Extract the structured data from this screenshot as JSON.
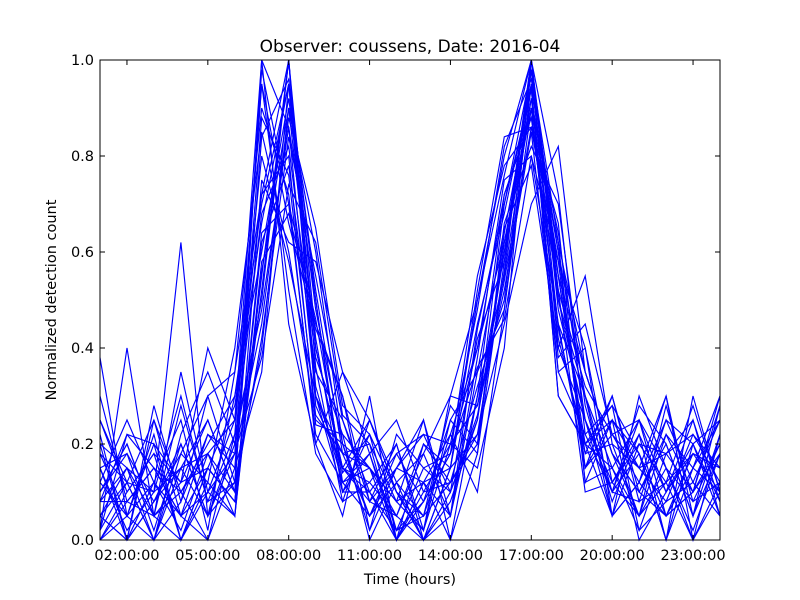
{
  "chart_data": {
    "type": "line",
    "title": "Observer: coussens, Date: 2016-04",
    "xlabel": "Time (hours)",
    "ylabel": "Normalized detection count",
    "xlim": [
      1,
      24
    ],
    "ylim": [
      0,
      1
    ],
    "x_ticks": [
      {
        "value": 2,
        "label": "02:00:00"
      },
      {
        "value": 5,
        "label": "05:00:00"
      },
      {
        "value": 8,
        "label": "08:00:00"
      },
      {
        "value": 11,
        "label": "11:00:00"
      },
      {
        "value": 14,
        "label": "14:00:00"
      },
      {
        "value": 17,
        "label": "17:00:00"
      },
      {
        "value": 20,
        "label": "20:00:00"
      },
      {
        "value": 23,
        "label": "23:00:00"
      }
    ],
    "y_ticks": [
      {
        "value": 0.0,
        "label": "0.0"
      },
      {
        "value": 0.2,
        "label": "0.2"
      },
      {
        "value": 0.4,
        "label": "0.4"
      },
      {
        "value": 0.6,
        "label": "0.6"
      },
      {
        "value": 0.8,
        "label": "0.8"
      },
      {
        "value": 1.0,
        "label": "1.0"
      }
    ],
    "grid": false,
    "legend": "none",
    "color": "#0000ff",
    "x": [
      1,
      2,
      3,
      4,
      5,
      6,
      7,
      8,
      9,
      10,
      11,
      12,
      13,
      14,
      15,
      16,
      17,
      18,
      19,
      20,
      21,
      22,
      23,
      24
    ],
    "series": [
      {
        "values": [
          0.38,
          0.05,
          0.12,
          0.02,
          0.18,
          0.1,
          1.0,
          0.45,
          0.2,
          0.35,
          0.18,
          0.0,
          0.12,
          0.22,
          0.1,
          0.48,
          0.95,
          0.3,
          0.2,
          0.15,
          0.05,
          0.22,
          0.1,
          0.18
        ]
      },
      {
        "values": [
          0.15,
          0.0,
          0.08,
          0.2,
          0.05,
          0.3,
          0.7,
          0.95,
          0.4,
          0.15,
          0.08,
          0.05,
          0.0,
          0.1,
          0.25,
          0.6,
          1.0,
          0.55,
          0.2,
          0.05,
          0.12,
          0.3,
          0.0,
          0.1
        ]
      },
      {
        "values": [
          0.05,
          0.12,
          0.0,
          0.15,
          0.25,
          0.1,
          0.55,
          1.0,
          0.3,
          0.1,
          0.22,
          0.02,
          0.08,
          0.18,
          0.4,
          0.72,
          0.88,
          0.45,
          0.15,
          0.25,
          0.0,
          0.1,
          0.2,
          0.05
        ]
      },
      {
        "values": [
          0.1,
          0.2,
          0.05,
          0.0,
          0.12,
          0.4,
          0.85,
          0.6,
          0.25,
          0.2,
          0.05,
          0.12,
          0.0,
          0.05,
          0.3,
          0.55,
          0.92,
          0.6,
          0.3,
          0.1,
          0.18,
          0.05,
          0.15,
          0.25
        ]
      },
      {
        "values": [
          0.0,
          0.08,
          0.15,
          0.1,
          0.0,
          0.22,
          0.48,
          0.86,
          0.5,
          0.12,
          0.15,
          0.08,
          0.02,
          0.25,
          0.35,
          0.65,
          0.78,
          0.4,
          0.55,
          0.2,
          0.05,
          0.15,
          0.08,
          0.2
        ]
      },
      {
        "values": [
          0.2,
          0.0,
          0.25,
          0.05,
          0.15,
          0.08,
          0.62,
          0.78,
          0.35,
          0.25,
          0.1,
          0.0,
          0.2,
          0.15,
          0.5,
          0.8,
          1.0,
          0.5,
          0.25,
          0.12,
          0.22,
          0.0,
          0.3,
          0.1
        ]
      },
      {
        "values": [
          0.08,
          0.15,
          0.1,
          0.62,
          0.05,
          0.18,
          0.95,
          0.52,
          0.18,
          0.08,
          0.25,
          0.1,
          0.05,
          0.12,
          0.22,
          0.45,
          0.7,
          0.82,
          0.35,
          0.18,
          0.1,
          0.2,
          0.05,
          0.28
        ]
      },
      {
        "values": [
          0.12,
          0.05,
          0.0,
          0.18,
          0.3,
          0.12,
          0.4,
          0.9,
          0.6,
          0.2,
          0.02,
          0.15,
          0.12,
          0.0,
          0.18,
          0.58,
          0.98,
          0.62,
          0.12,
          0.25,
          0.15,
          0.08,
          0.22,
          0.12
        ]
      },
      {
        "values": [
          0.02,
          0.4,
          0.05,
          0.1,
          0.18,
          0.25,
          0.72,
          1.0,
          0.28,
          0.15,
          0.12,
          0.05,
          0.18,
          0.3,
          0.28,
          0.52,
          0.85,
          0.35,
          0.4,
          0.05,
          0.2,
          0.12,
          0.0,
          0.22
        ]
      },
      {
        "values": [
          0.25,
          0.1,
          0.18,
          0.0,
          0.1,
          0.05,
          0.58,
          0.68,
          0.45,
          0.3,
          0.08,
          0.2,
          0.0,
          0.15,
          0.45,
          0.68,
          0.95,
          0.55,
          0.18,
          0.3,
          0.08,
          0.25,
          0.12,
          0.05
        ]
      },
      {
        "values": [
          0.05,
          0.0,
          0.12,
          0.25,
          0.02,
          0.35,
          0.9,
          0.72,
          0.2,
          0.05,
          0.3,
          0.0,
          0.1,
          0.2,
          0.15,
          0.4,
          1.0,
          0.72,
          0.22,
          0.1,
          0.25,
          0.1,
          0.18,
          0.15
        ]
      },
      {
        "values": [
          0.18,
          0.12,
          0.0,
          0.08,
          0.22,
          0.15,
          0.35,
          0.95,
          0.52,
          0.18,
          0.15,
          0.08,
          0.25,
          0.05,
          0.38,
          0.75,
          0.8,
          0.45,
          0.3,
          0.15,
          0.02,
          0.18,
          0.25,
          0.08
        ]
      },
      {
        "values": [
          0.1,
          0.18,
          0.08,
          0.15,
          0.05,
          0.2,
          0.68,
          0.82,
          0.38,
          0.22,
          0.0,
          0.12,
          0.05,
          0.28,
          0.2,
          0.62,
          0.9,
          0.58,
          0.15,
          0.22,
          0.12,
          0.05,
          0.1,
          0.3
        ]
      },
      {
        "values": [
          0.0,
          0.05,
          0.2,
          0.0,
          0.15,
          0.08,
          0.52,
          1.0,
          0.42,
          0.1,
          0.18,
          0.25,
          0.1,
          0.12,
          0.32,
          0.5,
          0.98,
          0.4,
          0.25,
          0.05,
          0.3,
          0.15,
          0.02,
          0.18
        ]
      },
      {
        "values": [
          0.3,
          0.08,
          0.05,
          0.12,
          0.4,
          0.25,
          0.8,
          0.58,
          0.3,
          0.15,
          0.1,
          0.02,
          0.15,
          0.18,
          0.55,
          0.78,
          0.86,
          0.62,
          0.35,
          0.18,
          0.1,
          0.22,
          0.15,
          0.1
        ]
      },
      {
        "values": [
          0.08,
          0.22,
          0.15,
          0.05,
          0.1,
          0.18,
          0.45,
          0.88,
          0.65,
          0.28,
          0.22,
          0.1,
          0.0,
          0.08,
          0.25,
          0.7,
          0.94,
          0.3,
          0.2,
          0.28,
          0.18,
          0.0,
          0.2,
          0.25
        ]
      },
      {
        "values": [
          0.15,
          0.02,
          0.1,
          0.3,
          0.08,
          0.12,
          0.98,
          0.7,
          0.22,
          0.12,
          0.05,
          0.18,
          0.22,
          0.1,
          0.42,
          0.58,
          1.0,
          0.52,
          0.1,
          0.12,
          0.05,
          0.28,
          0.08,
          0.12
        ]
      },
      {
        "values": [
          0.02,
          0.12,
          0.25,
          0.1,
          0.2,
          0.3,
          0.6,
          0.92,
          0.48,
          0.2,
          0.15,
          0.0,
          0.08,
          0.25,
          0.18,
          0.66,
          0.82,
          0.7,
          0.28,
          0.08,
          0.22,
          0.1,
          0.25,
          0.05
        ]
      },
      {
        "values": [
          0.22,
          0.0,
          0.08,
          0.18,
          0.12,
          0.05,
          0.75,
          0.62,
          0.58,
          0.35,
          0.25,
          0.12,
          0.18,
          0.05,
          0.35,
          0.48,
          0.9,
          0.38,
          0.45,
          0.22,
          0.15,
          0.18,
          0.1,
          0.2
        ]
      },
      {
        "values": [
          0.05,
          0.15,
          0.0,
          0.22,
          0.35,
          0.2,
          0.5,
          1.0,
          0.36,
          0.08,
          0.12,
          0.2,
          0.02,
          0.2,
          0.48,
          0.82,
          0.96,
          0.6,
          0.15,
          0.3,
          0.1,
          0.05,
          0.18,
          0.15
        ]
      },
      {
        "values": [
          0.12,
          0.25,
          0.12,
          0.05,
          0.0,
          0.15,
          0.88,
          0.76,
          0.26,
          0.18,
          0.2,
          0.08,
          0.12,
          0.15,
          0.22,
          0.56,
          1.0,
          0.48,
          0.25,
          0.1,
          0.28,
          0.2,
          0.05,
          0.22
        ]
      },
      {
        "values": [
          0.0,
          0.1,
          0.18,
          0.12,
          0.25,
          0.1,
          0.42,
          0.84,
          0.55,
          0.25,
          0.08,
          0.15,
          0.25,
          0.0,
          0.3,
          0.72,
          0.88,
          0.55,
          0.35,
          0.18,
          0.05,
          0.12,
          0.28,
          0.1
        ]
      },
      {
        "values": [
          0.18,
          0.05,
          0.22,
          0.0,
          0.15,
          0.28,
          0.66,
          0.95,
          0.32,
          0.12,
          0.18,
          0.02,
          0.05,
          0.22,
          0.4,
          0.62,
          0.92,
          0.42,
          0.2,
          0.25,
          0.18,
          0.0,
          0.15,
          0.3
        ]
      },
      {
        "values": [
          0.1,
          0.2,
          0.05,
          0.28,
          0.08,
          0.22,
          0.95,
          0.66,
          0.44,
          0.3,
          0.02,
          0.22,
          0.15,
          0.1,
          0.26,
          0.54,
          0.86,
          0.66,
          0.12,
          0.15,
          0.25,
          0.15,
          0.0,
          0.12
        ]
      },
      {
        "values": [
          0.25,
          0.12,
          0.1,
          0.15,
          0.18,
          0.05,
          0.56,
          0.9,
          0.4,
          0.15,
          0.25,
          0.1,
          0.02,
          0.3,
          0.5,
          0.76,
          1.0,
          0.5,
          0.3,
          0.05,
          0.12,
          0.25,
          0.2,
          0.08
        ]
      },
      {
        "values": [
          0.05,
          0.0,
          0.28,
          0.08,
          0.3,
          0.35,
          0.72,
          0.8,
          0.24,
          0.22,
          0.15,
          0.05,
          0.2,
          0.12,
          0.2,
          0.64,
          0.94,
          0.35,
          0.22,
          0.28,
          0.02,
          0.08,
          0.12,
          0.25
        ]
      },
      {
        "values": [
          0.15,
          0.18,
          0.02,
          0.2,
          0.05,
          0.12,
          0.84,
          0.96,
          0.5,
          0.1,
          0.1,
          0.18,
          0.08,
          0.18,
          0.36,
          0.46,
          0.8,
          0.58,
          0.4,
          0.12,
          0.2,
          0.18,
          0.22,
          0.15
        ]
      },
      {
        "values": [
          0.08,
          0.08,
          0.15,
          0.05,
          0.22,
          0.18,
          0.38,
          0.74,
          0.62,
          0.26,
          0.2,
          0.0,
          0.12,
          0.05,
          0.44,
          0.7,
          0.98,
          0.44,
          0.18,
          0.2,
          0.15,
          0.3,
          0.05,
          0.18
        ]
      },
      {
        "values": [
          0.2,
          0.15,
          0.05,
          0.35,
          0.1,
          0.25,
          1.0,
          0.86,
          0.3,
          0.18,
          0.05,
          0.15,
          0.22,
          0.2,
          0.28,
          0.6,
          0.9,
          0.64,
          0.25,
          0.1,
          0.08,
          0.12,
          0.18,
          0.1
        ]
      },
      {
        "values": [
          0.02,
          0.22,
          0.2,
          0.12,
          0.15,
          0.08,
          0.64,
          0.7,
          0.46,
          0.14,
          0.22,
          0.1,
          0.0,
          0.15,
          0.52,
          0.84,
          0.86,
          0.52,
          0.32,
          0.22,
          0.25,
          0.05,
          0.1,
          0.28
        ]
      }
    ]
  }
}
